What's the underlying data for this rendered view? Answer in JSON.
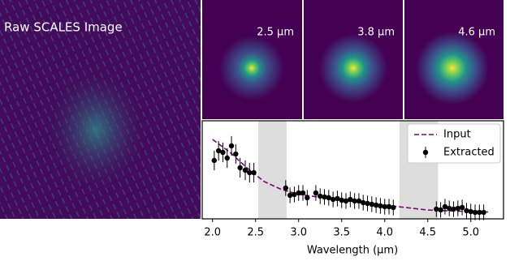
{
  "raw_image": {
    "title": "Raw SCALES Image"
  },
  "psf_panels": [
    {
      "label": "2.5 μm"
    },
    {
      "label": "3.8 μm"
    },
    {
      "label": "4.6 μm"
    }
  ],
  "chart_data": {
    "type": "errorbar",
    "xlabel": "Wavelength (μm)",
    "xlim": [
      1.88,
      5.38
    ],
    "ylim": [
      0,
      1
    ],
    "xticks": [
      {
        "value": 2,
        "label": "2.0"
      },
      {
        "value": 2.5,
        "label": "2.5"
      },
      {
        "value": 3,
        "label": "3.0"
      },
      {
        "value": 3.5,
        "label": "3.5"
      },
      {
        "value": 4,
        "label": "4.0"
      },
      {
        "value": 4.5,
        "label": "4.5"
      },
      {
        "value": 5,
        "label": "5.0"
      }
    ],
    "shaded_regions": [
      [
        2.53,
        2.86
      ],
      [
        4.17,
        4.62
      ]
    ],
    "shade_color": "#dddddd",
    "legend": "upper right",
    "series": [
      {
        "name": "Input",
        "type": "line",
        "color": "#800080",
        "x": [
          2.0,
          2.2,
          2.4,
          2.6,
          2.8,
          3.0,
          3.5,
          4.0,
          4.3,
          4.5,
          4.8,
          5.2
        ],
        "values": [
          0.81,
          0.68,
          0.52,
          0.38,
          0.3,
          0.25,
          0.19,
          0.14,
          0.11,
          0.09,
          0.08,
          0.07
        ]
      },
      {
        "name": "Extracted",
        "type": "errorbar",
        "color": "#000000",
        "x": [
          2.02,
          2.07,
          2.12,
          2.17,
          2.22,
          2.27,
          2.32,
          2.38,
          2.43,
          2.48,
          2.85,
          2.9,
          2.95,
          3.0,
          3.05,
          3.1,
          3.2,
          3.25,
          3.3,
          3.35,
          3.4,
          3.45,
          3.5,
          3.55,
          3.6,
          3.65,
          3.7,
          3.75,
          3.8,
          3.85,
          3.9,
          3.95,
          4.0,
          4.05,
          4.1,
          4.6,
          4.65,
          4.7,
          4.75,
          4.8,
          4.85,
          4.9,
          4.95,
          5.0,
          5.05,
          5.1,
          5.15
        ],
        "values": [
          0.595,
          0.694,
          0.678,
          0.62,
          0.744,
          0.661,
          0.521,
          0.496,
          0.471,
          0.471,
          0.314,
          0.24,
          0.248,
          0.264,
          0.264,
          0.215,
          0.264,
          0.231,
          0.223,
          0.215,
          0.198,
          0.207,
          0.19,
          0.182,
          0.198,
          0.182,
          0.182,
          0.165,
          0.157,
          0.149,
          0.14,
          0.132,
          0.124,
          0.124,
          0.116,
          0.099,
          0.091,
          0.124,
          0.107,
          0.099,
          0.107,
          0.116,
          0.083,
          0.074,
          0.066,
          0.066,
          0.066
        ],
        "errors": [
          0.1,
          0.1,
          0.1,
          0.1,
          0.1,
          0.1,
          0.1,
          0.1,
          0.1,
          0.1,
          0.08,
          0.08,
          0.08,
          0.08,
          0.08,
          0.08,
          0.08,
          0.08,
          0.08,
          0.08,
          0.08,
          0.08,
          0.08,
          0.08,
          0.08,
          0.08,
          0.08,
          0.08,
          0.08,
          0.08,
          0.08,
          0.08,
          0.08,
          0.08,
          0.08,
          0.08,
          0.08,
          0.08,
          0.08,
          0.08,
          0.08,
          0.08,
          0.08,
          0.08,
          0.08,
          0.08,
          0.08
        ]
      }
    ]
  }
}
